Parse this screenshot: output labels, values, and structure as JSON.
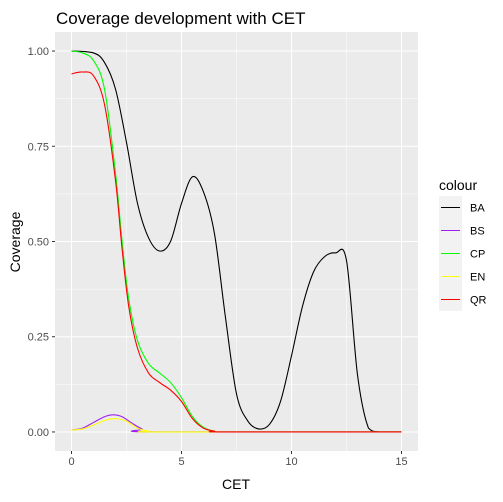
{
  "chart_data": {
    "type": "line",
    "title": "Coverage development with CET",
    "xlabel": "CET",
    "ylabel": "Coverage",
    "xlim": [
      -0.75,
      15.75
    ],
    "ylim": [
      -0.05,
      1.05
    ],
    "x_ticks": [
      0,
      5,
      10,
      15
    ],
    "x_tick_labels": [
      "0",
      "5",
      "10",
      "15"
    ],
    "y_ticks": [
      0,
      0.25,
      0.5,
      0.75,
      1.0
    ],
    "y_tick_labels": [
      "0.00",
      "0.25",
      "0.50",
      "0.75",
      "1.00"
    ],
    "grid": true,
    "panel_background": "#EBEBEB",
    "legend": {
      "title": "colour",
      "placement": "right"
    },
    "series": [
      {
        "name": "BA",
        "color": "#000000",
        "points": [
          [
            0,
            1.0
          ],
          [
            1,
            0.995
          ],
          [
            1.5,
            0.97
          ],
          [
            2,
            0.9
          ],
          [
            2.5,
            0.76
          ],
          [
            3,
            0.6
          ],
          [
            3.5,
            0.51
          ],
          [
            4,
            0.475
          ],
          [
            4.5,
            0.5
          ],
          [
            5,
            0.6
          ],
          [
            5.5,
            0.67
          ],
          [
            6,
            0.63
          ],
          [
            6.5,
            0.52
          ],
          [
            7,
            0.3
          ],
          [
            7.5,
            0.1
          ],
          [
            8,
            0.03
          ],
          [
            8.5,
            0.008
          ],
          [
            9,
            0.02
          ],
          [
            9.5,
            0.08
          ],
          [
            10,
            0.2
          ],
          [
            10.5,
            0.33
          ],
          [
            11,
            0.42
          ],
          [
            11.5,
            0.46
          ],
          [
            12,
            0.47
          ],
          [
            12.5,
            0.45
          ],
          [
            13,
            0.15
          ],
          [
            13.5,
            0.01
          ],
          [
            14,
            0.0
          ],
          [
            15,
            0.0
          ]
        ]
      },
      {
        "name": "BS",
        "color": "#A020F0",
        "points": [
          [
            0,
            0.005
          ],
          [
            0.5,
            0.01
          ],
          [
            1,
            0.025
          ],
          [
            1.5,
            0.04
          ],
          [
            1.9,
            0.045
          ],
          [
            2.3,
            0.04
          ],
          [
            2.7,
            0.025
          ],
          [
            3.2,
            0.008
          ],
          [
            3.7,
            0.0
          ],
          [
            15,
            0.0
          ]
        ]
      },
      {
        "name": "CP",
        "color": "#00FF00",
        "points": [
          [
            0,
            1.0
          ],
          [
            0.5,
            0.995
          ],
          [
            1,
            0.975
          ],
          [
            1.5,
            0.9
          ],
          [
            2,
            0.68
          ],
          [
            2.3,
            0.5
          ],
          [
            2.6,
            0.35
          ],
          [
            3,
            0.24
          ],
          [
            3.5,
            0.18
          ],
          [
            4,
            0.155
          ],
          [
            4.5,
            0.13
          ],
          [
            5,
            0.09
          ],
          [
            5.5,
            0.04
          ],
          [
            6,
            0.012
          ],
          [
            6.5,
            0.002
          ],
          [
            7,
            0.0
          ],
          [
            15,
            0.0
          ]
        ]
      },
      {
        "name": "EN",
        "color": "#FFFF00",
        "points": [
          [
            0,
            0.005
          ],
          [
            0.5,
            0.008
          ],
          [
            1,
            0.018
          ],
          [
            1.5,
            0.03
          ],
          [
            2,
            0.035
          ],
          [
            2.5,
            0.028
          ],
          [
            3,
            0.01
          ],
          [
            3.5,
            0.002
          ],
          [
            4,
            0.0
          ],
          [
            15,
            0.0
          ]
        ]
      },
      {
        "name": "QR",
        "color": "#FF0000",
        "points": [
          [
            0,
            0.94
          ],
          [
            0.5,
            0.945
          ],
          [
            1,
            0.935
          ],
          [
            1.5,
            0.86
          ],
          [
            2,
            0.66
          ],
          [
            2.3,
            0.48
          ],
          [
            2.6,
            0.33
          ],
          [
            3,
            0.22
          ],
          [
            3.5,
            0.155
          ],
          [
            4,
            0.13
          ],
          [
            4.5,
            0.11
          ],
          [
            5,
            0.08
          ],
          [
            5.5,
            0.035
          ],
          [
            6,
            0.01
          ],
          [
            6.5,
            0.002
          ],
          [
            7,
            0.0
          ],
          [
            15,
            0.0
          ]
        ]
      }
    ]
  }
}
